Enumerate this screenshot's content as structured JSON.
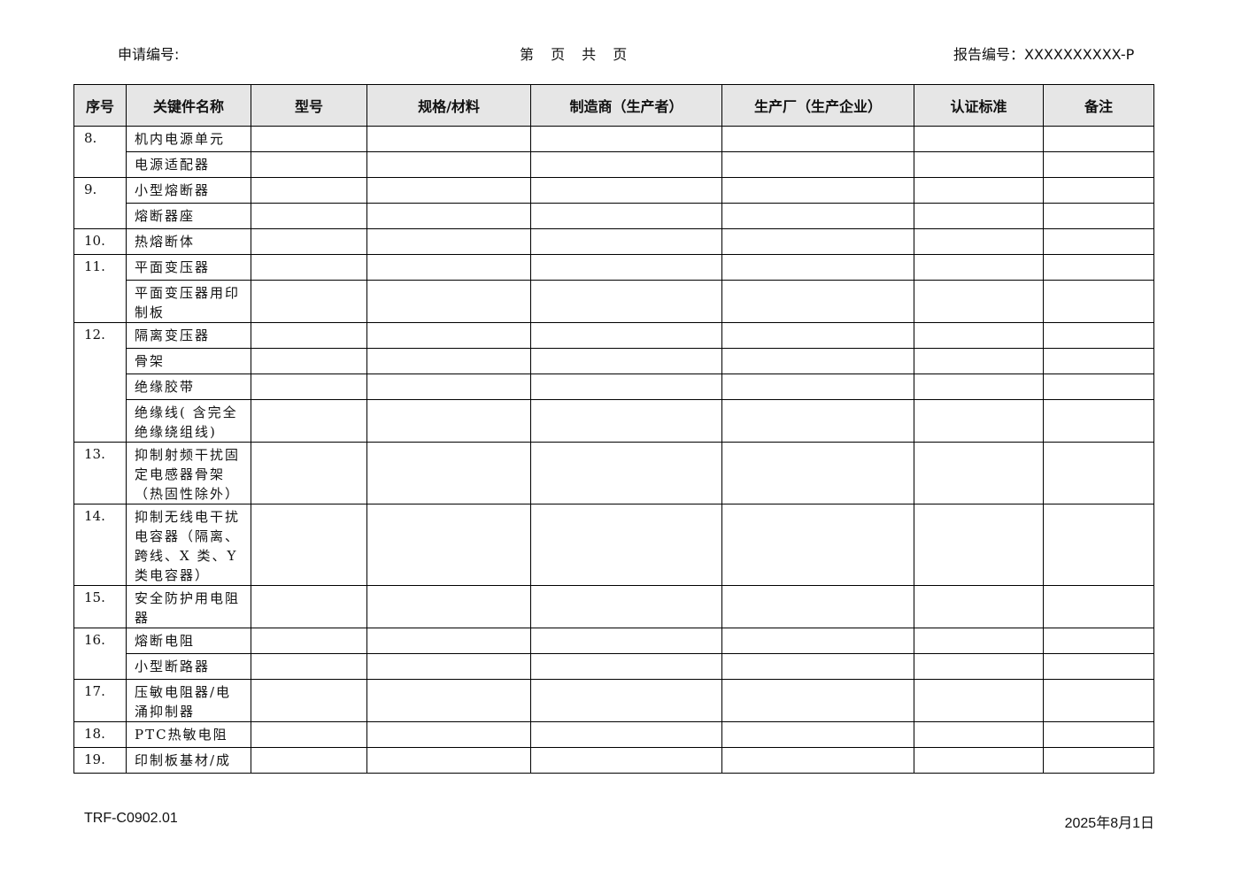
{
  "header": {
    "application_no_label": "申请编号:",
    "page_label": "第 页 共 页",
    "report_no_label": "报告编号：XXXXXXXXXX-P"
  },
  "table": {
    "columns": [
      "序号",
      "关键件名称",
      "型号",
      "规格/材料",
      "制造商（生产者）",
      "生产厂（生产企业）",
      "认证标准",
      "备注"
    ],
    "groups": [
      {
        "no": "8.",
        "items": [
          "机内电源单元",
          "电源适配器"
        ]
      },
      {
        "no": "9.",
        "items": [
          "小型熔断器",
          "熔断器座"
        ]
      },
      {
        "no": "10.",
        "items": [
          "热熔断体"
        ]
      },
      {
        "no": "11.",
        "items": [
          "平面变压器",
          "平面变压器用印制板"
        ]
      },
      {
        "no": "12.",
        "items": [
          "隔离变压器",
          "骨架",
          "绝缘胶带",
          "绝缘线( 含完全绝缘绕组线)"
        ]
      },
      {
        "no": "13.",
        "items": [
          "抑制射频干扰固定电感器骨架（热固性除外）"
        ]
      },
      {
        "no": "14.",
        "items": [
          "抑制无线电干扰电容器（隔离、跨线、X 类、Y 类电容器）"
        ]
      },
      {
        "no": "15.",
        "items": [
          "安全防护用电阻器"
        ]
      },
      {
        "no": "16.",
        "items": [
          "熔断电阻",
          "小型断路器"
        ]
      },
      {
        "no": "17.",
        "items": [
          "压敏电阻器/电涌抑制器"
        ]
      },
      {
        "no": "18.",
        "items": [
          "PTC热敏电阻"
        ]
      },
      {
        "no": "19.",
        "items": [
          "印制板基材/成"
        ]
      }
    ]
  },
  "footer": {
    "form_code": "TRF-C0902.01",
    "date": "2025年8月1日"
  }
}
